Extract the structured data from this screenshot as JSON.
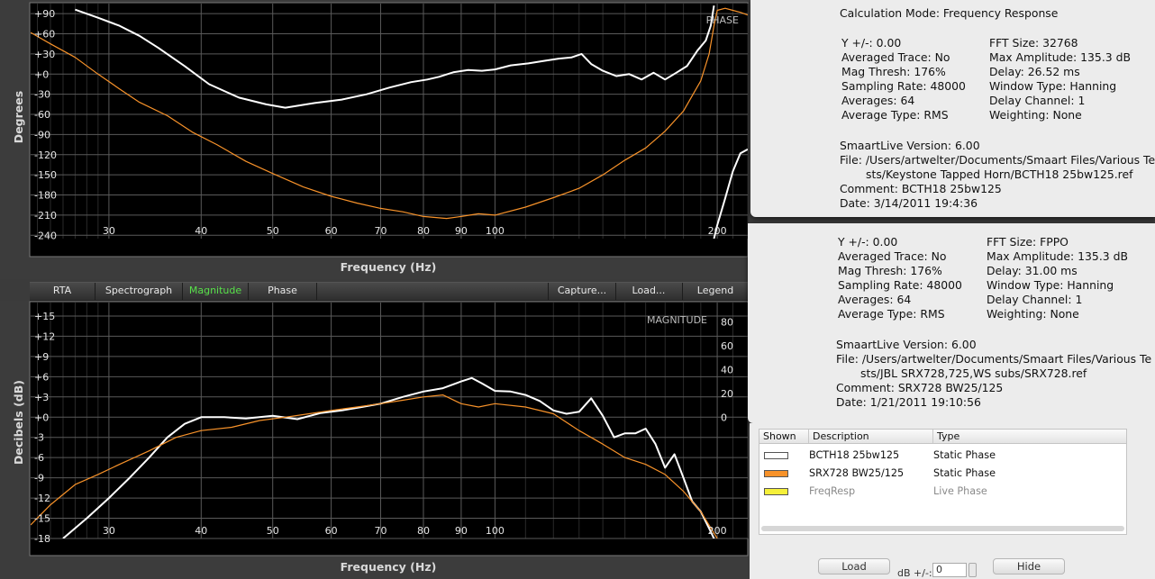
{
  "tabs": {
    "rta": "RTA",
    "spectrograph": "Spectrograph",
    "magnitude": "Magnitude",
    "phase": "Phase",
    "capture": "Capture...",
    "load": "Load...",
    "legend": "Legend"
  },
  "info_box_1": {
    "lines": [
      "Calculation Mode: Frequency Response",
      "Y +/-: 0.00",
      "Averaged Trace: No",
      "Mag Thresh: 176%",
      "Sampling Rate: 48000",
      "Averages: 64",
      "Average Type: RMS",
      "FFT Size: 32768",
      "Max Amplitude: 135.3 dB",
      "Delay: 26.52 ms",
      "Window Type: Hanning",
      "Delay Channel: 1",
      "Weighting: None",
      "SmaartLive Version: 6.00",
      "File: /Users/artwelter/Documents/Smaart Files/Various Te",
      "sts/Keystone Tapped Horn/BCTH18 25bw125.ref",
      "Comment: BCTH18 25bw125",
      "Date:  3/14/2011 19:4:36"
    ]
  },
  "info_box_2": {
    "lines": [
      "Y +/-: 0.00",
      "Averaged Trace: No",
      "Mag Thresh: 176%",
      "Sampling Rate: 48000",
      "Averages: 64",
      "Average Type: RMS",
      "FFT Size: FPPO",
      "Max Amplitude: 135.3 dB",
      "Delay: 31.00 ms",
      "Window Type: Hanning",
      "Delay Channel: 1",
      "Weighting: None",
      "SmaartLive Version: 6.00",
      "File: /Users/artwelter/Documents/Smaart Files/Various Te",
      "sts/JBL SRX728,725,WS subs/SRX728.ref",
      "Comment: SRX728 BW25/125",
      "Date:  1/21/2011 19:10:56"
    ]
  },
  "legend_panel": {
    "headers": {
      "shown": "Shown",
      "description": "Description",
      "type": "Type"
    },
    "rows": [
      {
        "description": "BCTH18 25bw125",
        "type": "Static Phase",
        "color": "#ffffff"
      },
      {
        "description": "SRX728 BW25/125",
        "type": "Static Phase",
        "color": "#f7922a"
      },
      {
        "description": "FreqResp",
        "type": "Live Phase",
        "color": "#f5f03a"
      }
    ],
    "load_button": "Load",
    "db_label": "dB +/-:",
    "db_value": "0",
    "hide_button": "Hide"
  },
  "chart_data": [
    {
      "type": "line",
      "title": "PHASE",
      "xlabel": "Frequency (Hz)",
      "ylabel": "Degrees",
      "x_scale": "log",
      "xlim": [
        23.5,
        220
      ],
      "ylim": [
        -245,
        105
      ],
      "x_ticks": [
        30,
        40,
        50,
        60,
        70,
        80,
        90,
        100,
        200
      ],
      "y_ticks": [
        90,
        60,
        30,
        0,
        -30,
        -60,
        -90,
        -120,
        -150,
        -180,
        -210,
        -240
      ],
      "y_tick_labels": [
        "+90",
        "+60",
        "+30",
        "+0",
        "-30",
        "-60",
        "-90",
        "-120",
        "-150",
        "-180",
        "-210",
        "-240"
      ],
      "grid": true,
      "series": [
        {
          "color": "#ffffff",
          "x": [
            27,
            29,
            31,
            33,
            35,
            38,
            41,
            45,
            49,
            52,
            57,
            62,
            67,
            72,
            77,
            81,
            84,
            88,
            92,
            96,
            100,
            105,
            111,
            117,
            122,
            127,
            131,
            135,
            140,
            146,
            152,
            158,
            164,
            170,
            176,
            182,
            188,
            193,
            196,
            198
          ],
          "y": [
            96,
            84,
            72,
            57,
            39,
            12,
            -15,
            -35,
            -45,
            -50,
            -43,
            -38,
            -30,
            -20,
            -12,
            -8,
            -4,
            3,
            6,
            5,
            7,
            13,
            16,
            20,
            23,
            25,
            30,
            15,
            5,
            -3,
            0,
            -8,
            2,
            -8,
            2,
            12,
            35,
            50,
            72,
            102
          ],
          "segments": [
            {
              "x": [
                198,
                200,
                205,
                210,
                215,
                220
              ],
              "y": [
                -245,
                -225,
                -185,
                -145,
                -118,
                -112
              ]
            }
          ]
        },
        {
          "color": "#f7922a",
          "x": [
            23.5,
            25,
            27,
            29,
            31,
            33,
            36,
            39,
            42,
            46,
            50,
            55,
            60,
            65,
            70,
            75,
            80,
            86,
            90,
            95,
            100,
            110,
            120,
            130,
            140,
            150,
            160,
            170,
            180,
            190,
            195,
            198,
            200,
            205,
            210,
            215,
            220
          ],
          "y": [
            62,
            45,
            25,
            0,
            -22,
            -42,
            -62,
            -87,
            -105,
            -130,
            -148,
            -168,
            -182,
            -192,
            -200,
            -205,
            -212,
            -215,
            -212,
            -208,
            -210,
            -198,
            -184,
            -170,
            -150,
            -128,
            -110,
            -85,
            -55,
            -10,
            30,
            72,
            95,
            98,
            95,
            92,
            88
          ]
        }
      ]
    },
    {
      "type": "line",
      "title": "MAGNITUDE",
      "xlabel": "Frequency (Hz)",
      "ylabel": "Decibels (dB)",
      "x_scale": "log",
      "xlim": [
        23.5,
        220
      ],
      "ylim": [
        -18,
        17
      ],
      "x_ticks": [
        30,
        40,
        50,
        60,
        70,
        80,
        90,
        100,
        200
      ],
      "y_ticks": [
        15,
        12,
        9,
        6,
        3,
        0,
        -3,
        -6,
        -9,
        -12,
        -15,
        -18
      ],
      "y_tick_labels": [
        "+15",
        "+12",
        "+9",
        "+6",
        "+3",
        "+0",
        "-3",
        "-6",
        "-9",
        "-12",
        "-15",
        "-18"
      ],
      "y2_ticks": [
        80,
        60,
        40,
        20,
        0
      ],
      "grid": true,
      "series": [
        {
          "color": "#ffffff",
          "x": [
            26,
            28,
            30,
            32,
            34,
            36,
            38,
            40,
            43,
            46,
            50,
            54,
            58,
            62,
            66,
            70,
            75,
            80,
            85,
            90,
            93,
            96,
            100,
            105,
            110,
            115,
            120,
            125,
            130,
            135,
            140,
            145,
            150,
            155,
            160,
            165,
            170,
            175,
            180,
            185,
            190,
            195,
            200
          ],
          "y": [
            -18,
            -15,
            -12,
            -9,
            -6,
            -3,
            -1,
            0,
            0,
            -0.2,
            0.2,
            -0.3,
            0.6,
            1,
            1.5,
            2,
            3,
            3.8,
            4.3,
            5.3,
            5.8,
            5,
            3.9,
            3.8,
            3.3,
            2.4,
            1,
            0.5,
            0.8,
            2.8,
            0.2,
            -3,
            -2.4,
            -2.4,
            -1.7,
            -4,
            -7.5,
            -5.5,
            -9,
            -12.5,
            -14,
            -16.5,
            -19
          ]
        },
        {
          "color": "#f7922a",
          "x": [
            23.5,
            25,
            27,
            29,
            31,
            34,
            37,
            40,
            44,
            48,
            52,
            56,
            60,
            65,
            70,
            75,
            80,
            85,
            90,
            95,
            100,
            110,
            120,
            130,
            140,
            150,
            160,
            170,
            180,
            190,
            200
          ],
          "y": [
            -16,
            -13,
            -10,
            -8.5,
            -7,
            -5,
            -3,
            -2,
            -1.5,
            -0.5,
            0,
            0.5,
            1,
            1.5,
            2,
            2.5,
            3,
            3.3,
            2,
            1.5,
            2,
            1.5,
            0.5,
            -2,
            -4,
            -6,
            -7,
            -8.5,
            -11,
            -14,
            -18
          ]
        }
      ]
    }
  ]
}
